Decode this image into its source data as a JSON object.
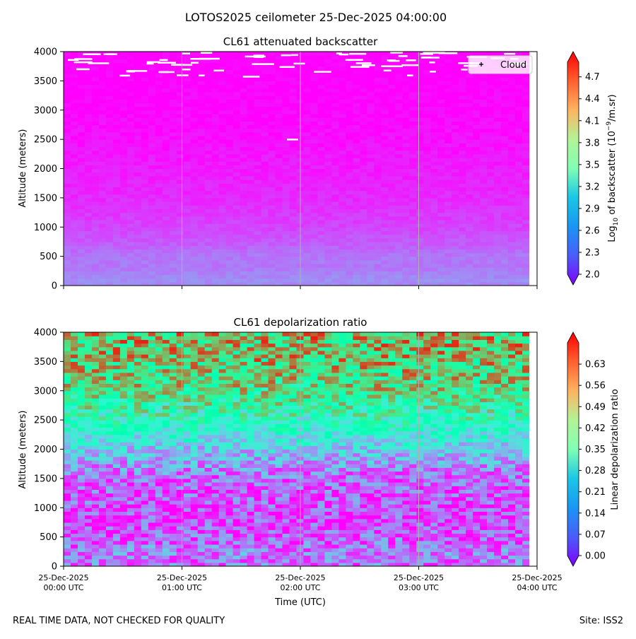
{
  "figure": {
    "suptitle": "LOTOS2025 ceilometer 25-Dec-2025 04:00:00",
    "footer_left": "REAL TIME DATA, NOT CHECKED FOR QUALITY",
    "footer_right": "Site: ISS2"
  },
  "chart_data": [
    {
      "type": "heatmap",
      "title": "CL61 attenuated backscatter",
      "xlabel": "",
      "ylabel": "Altitude (meters)",
      "x_ticks": [
        "25-Dec-2025\n00:00 UTC",
        "25-Dec-2025\n01:00 UTC",
        "25-Dec-2025\n02:00 UTC",
        "25-Dec-2025\n03:00 UTC",
        "25-Dec-2025\n04:00 UTC"
      ],
      "x_tick_labels_shown": false,
      "x_range": [
        "25-Dec-2025 00:00 UTC",
        "25-Dec-2025 04:00 UTC"
      ],
      "y_ticks": [
        0,
        500,
        1000,
        1500,
        2000,
        2500,
        3000,
        3500,
        4000
      ],
      "ylim": [
        0,
        4000
      ],
      "grid": "vertical lines at hourly ticks",
      "legend": {
        "placement": "top-right",
        "entries": [
          "Cloud"
        ],
        "marker": "+"
      },
      "colorbar": {
        "label": "Log10 of backscatter (10^-9/m.sr)",
        "label_main": "Log",
        "label_sub": "10",
        "label_mid": " of backscatter (10",
        "label_sup": "−9",
        "label_end": "/m.sr)",
        "colormap": "rainbow",
        "range": [
          2.0,
          4.9
        ],
        "ticks": [
          "2.0",
          "2.3",
          "2.6",
          "2.9",
          "3.2",
          "3.5",
          "3.8",
          "4.1",
          "4.4",
          "4.7"
        ],
        "extend": "both"
      },
      "profile": {
        "altitude": [
          0,
          100,
          200,
          300,
          500,
          700,
          1000,
          1500,
          2000,
          2500,
          3000,
          3500,
          4000
        ],
        "log10_backscatter": [
          2.5,
          2.55,
          2.5,
          2.45,
          2.45,
          2.35,
          2.25,
          2.15,
          2.1,
          2.05,
          2.02,
          2.0,
          2.0
        ]
      },
      "cloud_marks_altitude_range": [
        2500,
        4000
      ]
    },
    {
      "type": "heatmap",
      "title": "CL61 depolarization ratio",
      "xlabel": "Time (UTC)",
      "ylabel": "Altitude (meters)",
      "x_ticks": [
        "25-Dec-2025\n00:00 UTC",
        "25-Dec-2025\n01:00 UTC",
        "25-Dec-2025\n02:00 UTC",
        "25-Dec-2025\n03:00 UTC",
        "25-Dec-2025\n04:00 UTC"
      ],
      "x_range": [
        "25-Dec-2025 00:00 UTC",
        "25-Dec-2025 04:00 UTC"
      ],
      "y_ticks": [
        0,
        500,
        1000,
        1500,
        2000,
        2500,
        3000,
        3500,
        4000
      ],
      "ylim": [
        0,
        4000
      ],
      "grid": "vertical lines at hourly ticks",
      "colorbar": {
        "label": "Linear depolarization ratio",
        "colormap": "rainbow",
        "range": [
          0.0,
          0.7
        ],
        "ticks": [
          "0.00",
          "0.07",
          "0.14",
          "0.21",
          "0.28",
          "0.35",
          "0.42",
          "0.49",
          "0.56",
          "0.63"
        ],
        "extend": "both"
      },
      "profile": {
        "altitude": [
          0,
          200,
          500,
          800,
          1000,
          1500,
          2000,
          2500,
          3000,
          3500,
          4000
        ],
        "depolarization_ratio": [
          0.1,
          0.12,
          0.08,
          0.06,
          0.07,
          0.09,
          0.2,
          0.34,
          0.45,
          0.5,
          0.52
        ]
      }
    }
  ]
}
